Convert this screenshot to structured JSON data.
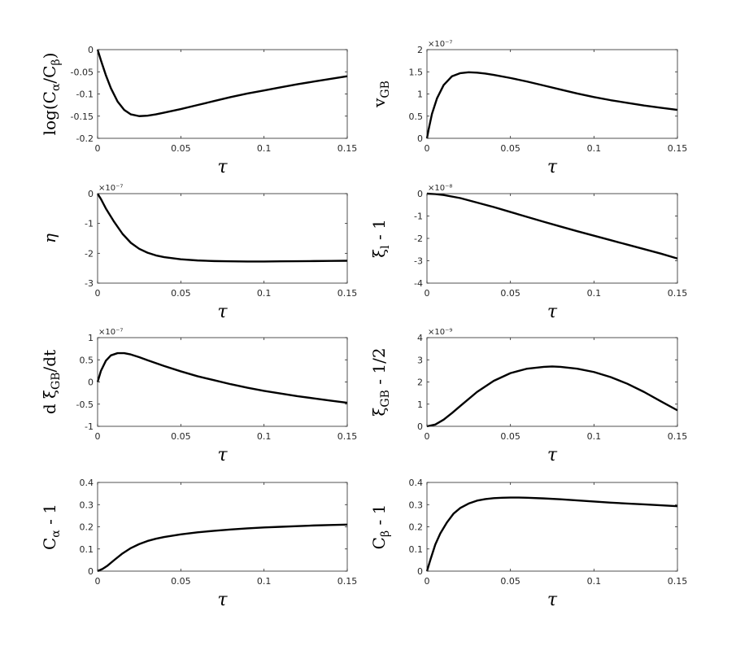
{
  "chart_data": [
    {
      "type": "line",
      "id": "p1",
      "ylabel_parts": [
        [
          "log(C",
          ""
        ],
        [
          "α",
          "sub"
        ],
        [
          "/C",
          ""
        ],
        [
          "β",
          "sub"
        ],
        [
          ")",
          ""
        ]
      ],
      "xlabel": "τ",
      "xlim": [
        0,
        0.15
      ],
      "ylim": [
        -0.2,
        0
      ],
      "xticks": [
        0,
        0.05,
        0.1,
        0.15
      ],
      "xtick_labels": [
        "0",
        "0.05",
        "0.1",
        "0.15"
      ],
      "yticks": [
        -0.2,
        -0.15,
        -0.1,
        -0.05,
        0
      ],
      "ytick_labels": [
        "-0.2",
        "-0.15",
        "-0.1",
        "-0.05",
        "0"
      ],
      "exponent": "",
      "series": [
        {
          "x": [
            0,
            0.002,
            0.005,
            0.008,
            0.012,
            0.016,
            0.02,
            0.025,
            0.03,
            0.035,
            0.04,
            0.05,
            0.06,
            0.07,
            0.08,
            0.09,
            0.1,
            0.11,
            0.12,
            0.13,
            0.14,
            0.15
          ],
          "y": [
            0,
            -0.024,
            -0.058,
            -0.087,
            -0.117,
            -0.136,
            -0.146,
            -0.15,
            -0.149,
            -0.146,
            -0.142,
            -0.134,
            -0.125,
            -0.116,
            -0.107,
            -0.099,
            -0.092,
            -0.085,
            -0.078,
            -0.072,
            -0.066,
            -0.06
          ]
        }
      ]
    },
    {
      "type": "line",
      "id": "p2",
      "ylabel_parts": [
        [
          "v",
          ""
        ],
        [
          "GB",
          "sub"
        ]
      ],
      "xlabel": "τ",
      "xlim": [
        0,
        0.15
      ],
      "ylim": [
        0,
        2
      ],
      "xticks": [
        0,
        0.05,
        0.1,
        0.15
      ],
      "xtick_labels": [
        "0",
        "0.05",
        "0.1",
        "0.15"
      ],
      "yticks": [
        0,
        0.5,
        1,
        1.5,
        2
      ],
      "ytick_labels": [
        "0",
        "0.5",
        "1",
        "1.5",
        "2"
      ],
      "exponent": "×10⁻⁷",
      "series": [
        {
          "x": [
            0,
            0.001,
            0.003,
            0.006,
            0.01,
            0.015,
            0.02,
            0.025,
            0.03,
            0.035,
            0.04,
            0.05,
            0.06,
            0.07,
            0.08,
            0.09,
            0.1,
            0.11,
            0.12,
            0.13,
            0.14,
            0.15
          ],
          "y": [
            0,
            0.2,
            0.55,
            0.9,
            1.2,
            1.4,
            1.47,
            1.49,
            1.48,
            1.46,
            1.43,
            1.36,
            1.28,
            1.19,
            1.1,
            1.01,
            0.93,
            0.86,
            0.8,
            0.74,
            0.69,
            0.64
          ]
        }
      ]
    },
    {
      "type": "line",
      "id": "p3",
      "ylabel_parts": [
        [
          "η",
          "italic"
        ]
      ],
      "xlabel": "τ",
      "xlim": [
        0,
        0.15
      ],
      "ylim": [
        -3,
        0
      ],
      "xticks": [
        0,
        0.05,
        0.1,
        0.15
      ],
      "xtick_labels": [
        "0",
        "0.05",
        "0.1",
        "0.15"
      ],
      "yticks": [
        -3,
        -2,
        -1,
        0
      ],
      "ytick_labels": [
        "-3",
        "-2",
        "-1",
        "0"
      ],
      "exponent": "×10⁻⁷",
      "series": [
        {
          "x": [
            0,
            0.002,
            0.005,
            0.01,
            0.015,
            0.02,
            0.025,
            0.03,
            0.035,
            0.04,
            0.05,
            0.06,
            0.07,
            0.08,
            0.09,
            0.1,
            0.11,
            0.12,
            0.13,
            0.14,
            0.15
          ],
          "y": [
            0,
            -0.18,
            -0.5,
            -0.95,
            -1.35,
            -1.65,
            -1.85,
            -1.98,
            -2.07,
            -2.13,
            -2.2,
            -2.24,
            -2.26,
            -2.27,
            -2.275,
            -2.275,
            -2.27,
            -2.265,
            -2.26,
            -2.255,
            -2.25
          ]
        }
      ]
    },
    {
      "type": "line",
      "id": "p4",
      "ylabel_parts": [
        [
          "ξ",
          ""
        ],
        [
          "l",
          "sub"
        ],
        [
          " - 1",
          ""
        ]
      ],
      "xlabel": "τ",
      "xlim": [
        0,
        0.15
      ],
      "ylim": [
        -4,
        0
      ],
      "xticks": [
        0,
        0.05,
        0.1,
        0.15
      ],
      "xtick_labels": [
        "0",
        "0.05",
        "0.1",
        "0.15"
      ],
      "yticks": [
        -4,
        -3,
        -2,
        -1,
        0
      ],
      "ytick_labels": [
        "-4",
        "-3",
        "-2",
        "-1",
        "0"
      ],
      "exponent": "×10⁻⁸",
      "series": [
        {
          "x": [
            0,
            0.005,
            0.01,
            0.02,
            0.03,
            0.04,
            0.05,
            0.06,
            0.07,
            0.08,
            0.09,
            0.1,
            0.11,
            0.12,
            0.13,
            0.14,
            0.15
          ],
          "y": [
            0,
            -0.02,
            -0.06,
            -0.2,
            -0.4,
            -0.6,
            -0.82,
            -1.04,
            -1.26,
            -1.47,
            -1.68,
            -1.88,
            -2.08,
            -2.28,
            -2.48,
            -2.68,
            -2.9
          ]
        }
      ]
    },
    {
      "type": "line",
      "id": "p5",
      "ylabel_parts": [
        [
          "d ξ",
          ""
        ],
        [
          "GB",
          "sub"
        ],
        [
          "/dt",
          ""
        ]
      ],
      "xlabel": "τ",
      "xlim": [
        0,
        0.15
      ],
      "ylim": [
        -1,
        1
      ],
      "xticks": [
        0,
        0.05,
        0.1,
        0.15
      ],
      "xtick_labels": [
        "0",
        "0.05",
        "0.1",
        "0.15"
      ],
      "yticks": [
        -1,
        -0.5,
        0,
        0.5,
        1
      ],
      "ytick_labels": [
        "-1",
        "-0.5",
        "0",
        "0.5",
        "1"
      ],
      "exponent": "×10⁻⁷",
      "series": [
        {
          "x": [
            0,
            0.002,
            0.005,
            0.008,
            0.012,
            0.016,
            0.02,
            0.025,
            0.03,
            0.04,
            0.05,
            0.06,
            0.07,
            0.08,
            0.09,
            0.1,
            0.11,
            0.12,
            0.13,
            0.14,
            0.15
          ],
          "y": [
            0,
            0.25,
            0.48,
            0.6,
            0.65,
            0.65,
            0.62,
            0.56,
            0.49,
            0.36,
            0.24,
            0.13,
            0.04,
            -0.05,
            -0.13,
            -0.2,
            -0.26,
            -0.32,
            -0.37,
            -0.42,
            -0.47
          ]
        }
      ]
    },
    {
      "type": "line",
      "id": "p6",
      "ylabel_parts": [
        [
          "ξ",
          ""
        ],
        [
          "GB",
          "sub"
        ],
        [
          " - 1/2",
          ""
        ]
      ],
      "xlabel": "τ",
      "xlim": [
        0,
        0.15
      ],
      "ylim": [
        0,
        4
      ],
      "xticks": [
        0,
        0.05,
        0.1,
        0.15
      ],
      "xtick_labels": [
        "0",
        "0.05",
        "0.1",
        "0.15"
      ],
      "yticks": [
        0,
        1,
        2,
        3,
        4
      ],
      "ytick_labels": [
        "0",
        "1",
        "2",
        "3",
        "4"
      ],
      "exponent": "×10⁻⁹",
      "series": [
        {
          "x": [
            0,
            0.005,
            0.01,
            0.015,
            0.02,
            0.03,
            0.04,
            0.05,
            0.06,
            0.07,
            0.075,
            0.08,
            0.09,
            0.1,
            0.11,
            0.12,
            0.13,
            0.14,
            0.15
          ],
          "y": [
            0,
            0.08,
            0.3,
            0.6,
            0.92,
            1.55,
            2.05,
            2.4,
            2.6,
            2.68,
            2.7,
            2.68,
            2.6,
            2.45,
            2.22,
            1.92,
            1.55,
            1.13,
            0.72
          ]
        }
      ]
    },
    {
      "type": "line",
      "id": "p7",
      "ylabel_parts": [
        [
          "C",
          ""
        ],
        [
          "α",
          "sub"
        ],
        [
          " - 1",
          ""
        ]
      ],
      "xlabel": "τ",
      "xlim": [
        0,
        0.15
      ],
      "ylim": [
        0,
        0.4
      ],
      "xticks": [
        0,
        0.05,
        0.1,
        0.15
      ],
      "xtick_labels": [
        "0",
        "0.05",
        "0.1",
        "0.15"
      ],
      "yticks": [
        0,
        0.1,
        0.2,
        0.3,
        0.4
      ],
      "ytick_labels": [
        "0",
        "0.1",
        "0.2",
        "0.3",
        "0.4"
      ],
      "exponent": "",
      "series": [
        {
          "x": [
            0,
            0.003,
            0.006,
            0.01,
            0.015,
            0.02,
            0.025,
            0.03,
            0.035,
            0.04,
            0.05,
            0.06,
            0.07,
            0.08,
            0.09,
            0.1,
            0.11,
            0.12,
            0.13,
            0.14,
            0.15
          ],
          "y": [
            0,
            0.01,
            0.025,
            0.05,
            0.08,
            0.104,
            0.122,
            0.136,
            0.146,
            0.154,
            0.166,
            0.175,
            0.182,
            0.188,
            0.193,
            0.197,
            0.2,
            0.203,
            0.206,
            0.208,
            0.21
          ]
        }
      ]
    },
    {
      "type": "line",
      "id": "p8",
      "ylabel_parts": [
        [
          "C",
          ""
        ],
        [
          "β",
          "sub"
        ],
        [
          " - 1",
          ""
        ]
      ],
      "xlabel": "τ",
      "xlim": [
        0,
        0.15
      ],
      "ylim": [
        0,
        0.4
      ],
      "xticks": [
        0,
        0.05,
        0.1,
        0.15
      ],
      "xtick_labels": [
        "0",
        "0.05",
        "0.1",
        "0.15"
      ],
      "yticks": [
        0,
        0.1,
        0.2,
        0.3,
        0.4
      ],
      "ytick_labels": [
        "0",
        "0.1",
        "0.2",
        "0.3",
        "0.4"
      ],
      "exponent": "",
      "series": [
        {
          "x": [
            0,
            0.002,
            0.005,
            0.008,
            0.012,
            0.016,
            0.02,
            0.025,
            0.03,
            0.035,
            0.04,
            0.045,
            0.05,
            0.055,
            0.06,
            0.07,
            0.08,
            0.09,
            0.1,
            0.11,
            0.12,
            0.13,
            0.14,
            0.15
          ],
          "y": [
            0,
            0.05,
            0.12,
            0.17,
            0.22,
            0.26,
            0.285,
            0.305,
            0.318,
            0.325,
            0.329,
            0.331,
            0.332,
            0.332,
            0.331,
            0.328,
            0.324,
            0.319,
            0.314,
            0.309,
            0.305,
            0.301,
            0.297,
            0.293
          ]
        }
      ]
    }
  ]
}
